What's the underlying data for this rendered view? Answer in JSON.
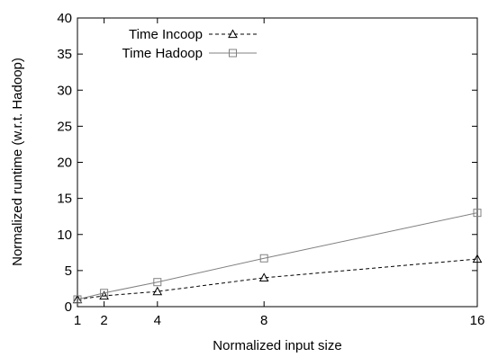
{
  "chart_data": {
    "type": "line",
    "xlabel": "Normalized input size",
    "ylabel": "Normalized runtime (w.r.t. Hadoop)",
    "xlim": [
      1,
      16
    ],
    "ylim": [
      0,
      40
    ],
    "xticks": [
      1,
      2,
      4,
      8,
      16
    ],
    "yticks": [
      0,
      5,
      10,
      15,
      20,
      25,
      30,
      35,
      40
    ],
    "grid": false,
    "legend_position": "top-left",
    "series": [
      {
        "name": "Time Incoop",
        "x": [
          1,
          2,
          4,
          8,
          16
        ],
        "values": [
          1.0,
          1.5,
          2.1,
          4.0,
          6.6
        ],
        "line_style": "dashed",
        "marker": "triangle",
        "color": "#000000"
      },
      {
        "name": "Time Hadoop",
        "x": [
          1,
          2,
          4,
          8,
          16
        ],
        "values": [
          1.0,
          1.9,
          3.4,
          6.7,
          13.0
        ],
        "line_style": "solid",
        "marker": "square",
        "color": "#808080"
      }
    ]
  }
}
